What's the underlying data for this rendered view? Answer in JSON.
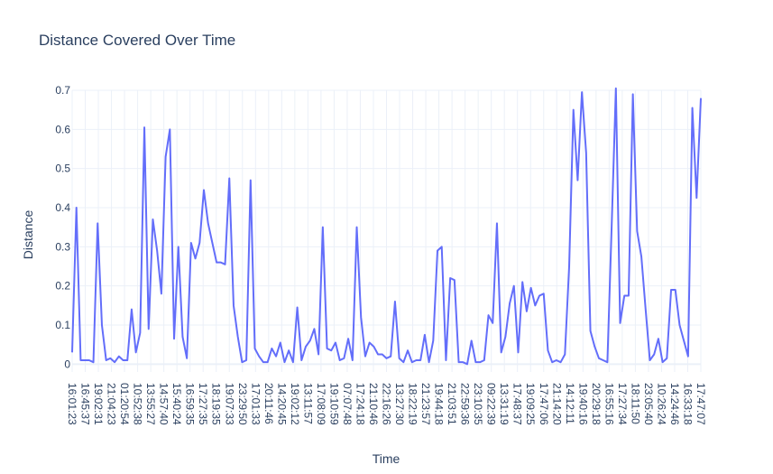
{
  "chart_data": {
    "type": "line",
    "title": "Distance Covered Over Time",
    "xlabel": "Time",
    "ylabel": "Distance",
    "ylim": [
      -0.02,
      0.7
    ],
    "yticks": [
      0,
      0.1,
      0.2,
      0.3,
      0.4,
      0.5,
      0.6,
      0.7
    ],
    "ytick_labels": [
      "0",
      "0.1",
      "0.2",
      "0.3",
      "0.4",
      "0.5",
      "0.6",
      "0.7"
    ],
    "xtick_labels": [
      "16:01:23",
      "16:45:37",
      "19:02:31",
      "21:04:23",
      "01:20:54",
      "10:52:38",
      "13:55:27",
      "14:57:40",
      "15:40:24",
      "16:59:35",
      "17:27:35",
      "18:19:35",
      "19:07:33",
      "23:29:50",
      "17:01:33",
      "20:11:46",
      "14:20:45",
      "19:02:12",
      "13:11:57",
      "17:08:09",
      "19:10:59",
      "07:07:48",
      "17:24:18",
      "21:10:46",
      "22:16:26",
      "13:27:30",
      "18:22:19",
      "21:23:57",
      "19:44:18",
      "21:03:51",
      "22:59:36",
      "23:10:35",
      "09:22:39",
      "13:31:19",
      "17:48:37",
      "19:09:25",
      "17:47:06",
      "21:14:20",
      "14:12:11",
      "19:40:16",
      "20:29:18",
      "16:55:16",
      "17:27:34",
      "18:11:50",
      "23:05:40",
      "10:26:24",
      "14:24:46",
      "16:33:18",
      "17:47:07"
    ],
    "line_color": "#636efa",
    "series": [
      {
        "name": "Distance",
        "values": [
          0.03,
          0.4,
          0.01,
          0.01,
          0.01,
          0.005,
          0.36,
          0.1,
          0.01,
          0.015,
          0.005,
          0.02,
          0.01,
          0.01,
          0.14,
          0.03,
          0.08,
          0.605,
          0.09,
          0.37,
          0.29,
          0.18,
          0.53,
          0.6,
          0.065,
          0.3,
          0.07,
          0.015,
          0.31,
          0.27,
          0.31,
          0.445,
          0.36,
          0.31,
          0.26,
          0.26,
          0.255,
          0.475,
          0.15,
          0.07,
          0.005,
          0.01,
          0.47,
          0.04,
          0.02,
          0.005,
          0.005,
          0.04,
          0.02,
          0.055,
          0.005,
          0.035,
          0.005,
          0.145,
          0.01,
          0.045,
          0.06,
          0.09,
          0.025,
          0.35,
          0.04,
          0.035,
          0.055,
          0.01,
          0.015,
          0.065,
          0.01,
          0.35,
          0.12,
          0.02,
          0.055,
          0.045,
          0.025,
          0.025,
          0.015,
          0.02,
          0.16,
          0.015,
          0.005,
          0.035,
          0.005,
          0.01,
          0.01,
          0.075,
          0.005,
          0.06,
          0.29,
          0.3,
          0.01,
          0.22,
          0.215,
          0.005,
          0.005,
          0.0,
          0.06,
          0.005,
          0.005,
          0.01,
          0.125,
          0.105,
          0.36,
          0.03,
          0.07,
          0.155,
          0.2,
          0.03,
          0.21,
          0.135,
          0.195,
          0.15,
          0.175,
          0.18,
          0.035,
          0.005,
          0.01,
          0.005,
          0.025,
          0.25,
          0.65,
          0.47,
          0.695,
          0.54,
          0.085,
          0.045,
          0.015,
          0.01,
          0.005,
          0.35,
          0.705,
          0.105,
          0.175,
          0.175,
          0.69,
          0.34,
          0.275,
          0.14,
          0.01,
          0.025,
          0.065,
          0.005,
          0.015,
          0.19,
          0.19,
          0.1,
          0.06,
          0.02,
          0.655,
          0.425,
          0.68
        ]
      }
    ]
  }
}
